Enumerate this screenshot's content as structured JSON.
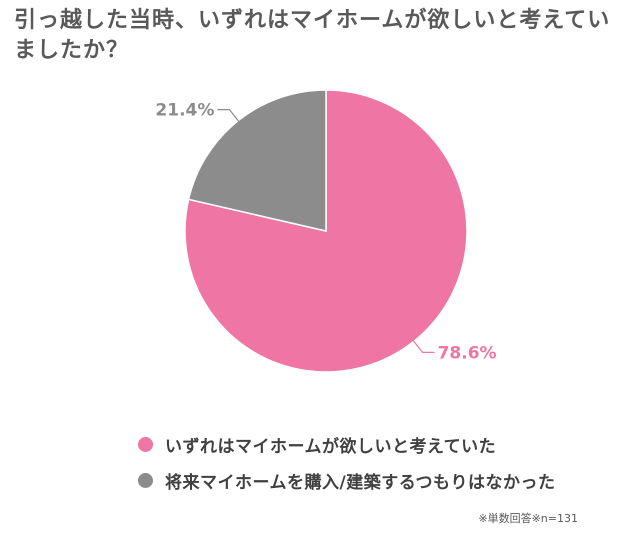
{
  "title": "引っ越した当時、いずれはマイホームが欲しいと考えていましたか？",
  "note": "※単数回答※n=131",
  "chart_data": {
    "type": "pie",
    "title": "引っ越した当時、いずれはマイホームが欲しいと考えていましたか？",
    "slices": [
      {
        "label": "いずれはマイホームが欲しいと考えていた",
        "value": 78.6,
        "display": "78.6%",
        "color": "#ef75a4"
      },
      {
        "label": "将来マイホームを購入/建築するつもりはなかった",
        "value": 21.4,
        "display": "21.4%",
        "color": "#8c8c8c"
      }
    ],
    "start": "12 o'clock, clockwise"
  }
}
